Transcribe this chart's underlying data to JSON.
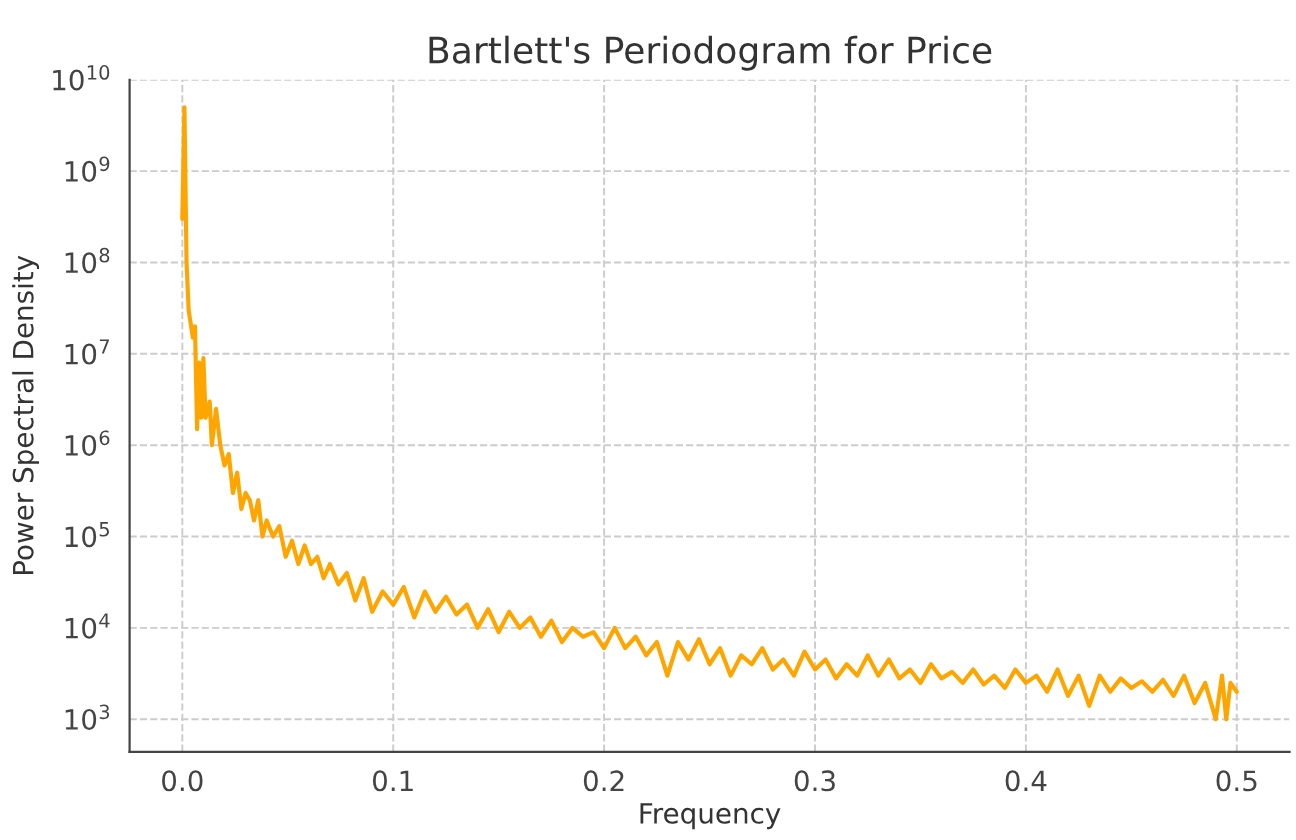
{
  "chart_data": {
    "type": "line",
    "title": "Bartlett's Periodogram for Price",
    "xlabel": "Frequency",
    "ylabel": "Power Spectral Density",
    "log": "y",
    "grid": true,
    "line_style": "solid",
    "xlim": [
      -0.025,
      0.525
    ],
    "ylim": [
      440,
      10000000000
    ],
    "xticks": [
      {
        "value": 0,
        "label": "0.0"
      },
      0.1,
      0.2,
      0.3,
      0.4,
      0.5
    ],
    "yticks": [
      {
        "value": 1000,
        "label": "10$^{3}$"
      },
      {
        "value": 10000,
        "label": "10$^{4}$"
      },
      {
        "value": 100000,
        "label": "10$^{5}$"
      },
      {
        "value": 1000000,
        "label": "10$^{6}$"
      },
      {
        "value": 10000000,
        "label": "10$^{7}$"
      },
      {
        "value": 100000000,
        "label": "10$^{8}$"
      },
      {
        "value": 1000000000,
        "label": "10$^{9}$"
      },
      {
        "value": 10000000000,
        "label": "10$^{10}$"
      }
    ],
    "x": [
      0.0,
      0.001,
      0.002,
      0.003,
      0.005,
      0.006,
      0.007,
      0.008,
      0.009,
      0.01,
      0.011,
      0.013,
      0.014,
      0.016,
      0.018,
      0.02,
      0.022,
      0.024,
      0.026,
      0.028,
      0.03,
      0.032,
      0.034,
      0.036,
      0.038,
      0.04,
      0.043,
      0.046,
      0.049,
      0.052,
      0.055,
      0.058,
      0.061,
      0.064,
      0.067,
      0.07,
      0.074,
      0.078,
      0.082,
      0.086,
      0.09,
      0.095,
      0.1,
      0.105,
      0.11,
      0.115,
      0.12,
      0.125,
      0.13,
      0.135,
      0.14,
      0.145,
      0.15,
      0.155,
      0.16,
      0.165,
      0.17,
      0.175,
      0.18,
      0.185,
      0.19,
      0.195,
      0.2,
      0.205,
      0.21,
      0.215,
      0.22,
      0.225,
      0.23,
      0.235,
      0.24,
      0.245,
      0.25,
      0.255,
      0.26,
      0.265,
      0.27,
      0.275,
      0.28,
      0.285,
      0.29,
      0.295,
      0.3,
      0.305,
      0.31,
      0.315,
      0.32,
      0.325,
      0.33,
      0.335,
      0.34,
      0.345,
      0.35,
      0.355,
      0.36,
      0.365,
      0.37,
      0.375,
      0.38,
      0.385,
      0.39,
      0.395,
      0.4,
      0.405,
      0.41,
      0.415,
      0.42,
      0.425,
      0.43,
      0.435,
      0.44,
      0.445,
      0.45,
      0.455,
      0.46,
      0.465,
      0.47,
      0.475,
      0.48,
      0.485,
      0.49,
      0.493,
      0.495,
      0.497,
      0.5
    ],
    "series": [
      {
        "color": "#ffa500",
        "values": [
          300000000.0,
          5000000000.0,
          100000000.0,
          30000000.0,
          15000000.0,
          20000000.0,
          1500000.0,
          8000000.0,
          2000000.0,
          9000000.0,
          2000000.0,
          3000000.0,
          1000000.0,
          2500000.0,
          1000000.0,
          600000.0,
          800000.0,
          300000.0,
          500000.0,
          200000.0,
          300000.0,
          250000.0,
          150000.0,
          250000.0,
          100000.0,
          150000.0,
          100000.0,
          130000.0,
          60000.0,
          90000.0,
          50000.0,
          80000.0,
          50000.0,
          60000.0,
          35000.0,
          50000.0,
          30000.0,
          40000.0,
          20000.0,
          35000.0,
          15000.0,
          25000.0,
          18000.0,
          28000.0,
          13000.0,
          25000.0,
          15000.0,
          22000.0,
          14000.0,
          18000.0,
          10000.0,
          16000.0,
          9000.0,
          15000.0,
          10000.0,
          13000.0,
          8000.0,
          12000.0,
          7000.0,
          10000.0,
          8000.0,
          9000.0,
          6000.0,
          10000.0,
          6000.0,
          8000.0,
          5000.0,
          7000.0,
          3000.0,
          7000.0,
          4500.0,
          7500.0,
          4000.0,
          6000.0,
          3000.0,
          5000.0,
          4000.0,
          6000.0,
          3500.0,
          4500.0,
          3000.0,
          5500.0,
          3500.0,
          4500.0,
          2800.0,
          4000.0,
          3000.0,
          5000.0,
          3000.0,
          4500.0,
          2800.0,
          3500.0,
          2500.0,
          4000.0,
          2800.0,
          3300.0,
          2500.0,
          3500.0,
          2400.0,
          3000.0,
          2200.0,
          3500.0,
          2500.0,
          3000.0,
          2000.0,
          3500.0,
          1800.0,
          3000.0,
          1400.0,
          3000.0,
          2000.0,
          2800.0,
          2200.0,
          2600.0,
          2000.0,
          2700.0,
          1800.0,
          3000.0,
          1500.0,
          2500.0,
          1000.0,
          3000.0,
          1000.0,
          2500.0,
          2000.0
        ]
      }
    ]
  }
}
